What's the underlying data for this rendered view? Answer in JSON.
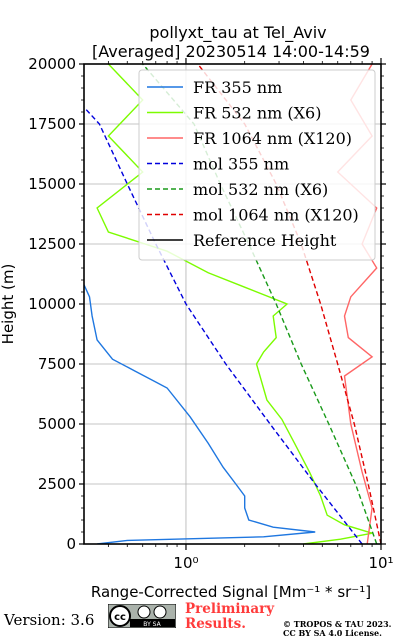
{
  "chart_data": {
    "type": "line",
    "title_line1": "pollyxt_tau at Tel_Aviv",
    "title_line2": "[Averaged] 20230514 14:00-14:59",
    "xlabel": "Range-Corrected Signal [Mm⁻¹ * sr⁻¹]",
    "ylabel": "Height (m)",
    "xscale": "log",
    "xlim": [
      0.3,
      10
    ],
    "ylim": [
      0,
      20000
    ],
    "yticks": [
      0,
      2500,
      5000,
      7500,
      10000,
      12500,
      15000,
      17500,
      20000
    ],
    "ytick_labels": [
      "0",
      "2500",
      "5000",
      "7500",
      "10000",
      "12500",
      "15000",
      "17500",
      "20000"
    ],
    "xticks": [
      1,
      10
    ],
    "xtick_labels": [
      "10⁰",
      "10¹"
    ],
    "grid": true,
    "legend_position": "top-right",
    "series": [
      {
        "name": "FR 355 nm",
        "color": "#1f77e0",
        "style": "solid",
        "points": [
          [
            0.35,
            0
          ],
          [
            0.5,
            150
          ],
          [
            2.5,
            300
          ],
          [
            4.6,
            500
          ],
          [
            2.8,
            700
          ],
          [
            2.1,
            1000
          ],
          [
            2.0,
            1500
          ],
          [
            2.0,
            2000
          ],
          [
            1.8,
            2500
          ],
          [
            1.55,
            3200
          ],
          [
            1.3,
            4200
          ],
          [
            1.05,
            5300
          ],
          [
            0.8,
            6500
          ],
          [
            0.55,
            7200
          ],
          [
            0.42,
            7700
          ],
          [
            0.35,
            8500
          ],
          [
            0.33,
            9500
          ],
          [
            0.32,
            10300
          ],
          [
            0.3,
            10800
          ]
        ]
      },
      {
        "name": "FR 532 nm (X6)",
        "color": "#7cfc00",
        "style": "solid",
        "points": [
          [
            4.0,
            0
          ],
          [
            6.2,
            200
          ],
          [
            9.0,
            450
          ],
          [
            6.5,
            800
          ],
          [
            5.3,
            1200
          ],
          [
            4.9,
            2000
          ],
          [
            4.3,
            3000
          ],
          [
            3.6,
            4200
          ],
          [
            3.1,
            5200
          ],
          [
            2.6,
            6000
          ],
          [
            2.3,
            7500
          ],
          [
            2.5,
            8000
          ],
          [
            2.9,
            8600
          ],
          [
            2.8,
            9500
          ],
          [
            3.3,
            10000
          ],
          [
            2.0,
            10700
          ],
          [
            1.3,
            11300
          ],
          [
            0.8,
            12200
          ],
          [
            0.4,
            13000
          ],
          [
            0.35,
            14000
          ],
          [
            0.6,
            15500
          ],
          [
            0.4,
            17000
          ],
          [
            0.6,
            18500
          ],
          [
            0.4,
            20000
          ]
        ]
      },
      {
        "name": "FR 1064 nm (X120)",
        "color": "#ff6666",
        "style": "solid",
        "points": [
          [
            8.5,
            0
          ],
          [
            9.0,
            1500
          ],
          [
            8.0,
            3000
          ],
          [
            7.0,
            5000
          ],
          [
            6.5,
            7000
          ],
          [
            9.0,
            7800
          ],
          [
            6.8,
            8600
          ],
          [
            6.5,
            9500
          ],
          [
            7.0,
            10300
          ],
          [
            9.5,
            11500
          ],
          [
            8.0,
            12500
          ],
          [
            9.5,
            14000
          ],
          [
            6.0,
            15500
          ],
          [
            9.0,
            17000
          ],
          [
            7.0,
            18500
          ],
          [
            9.0,
            20000
          ]
        ]
      },
      {
        "name": "mol 355 nm",
        "color": "#0000dd",
        "style": "dashed",
        "points": [
          [
            8.0,
            0
          ],
          [
            4.6,
            2500
          ],
          [
            2.7,
            5000
          ],
          [
            1.6,
            7500
          ],
          [
            1.0,
            10000
          ],
          [
            0.7,
            12500
          ],
          [
            0.5,
            15000
          ],
          [
            0.36,
            17500
          ],
          [
            0.3,
            18200
          ]
        ]
      },
      {
        "name": "mol 532 nm (X6)",
        "color": "#1a9a1a",
        "style": "dashed",
        "points": [
          [
            9.5,
            0
          ],
          [
            7.4,
            2500
          ],
          [
            5.4,
            5000
          ],
          [
            3.9,
            7500
          ],
          [
            2.9,
            10000
          ],
          [
            2.1,
            12500
          ],
          [
            1.5,
            15000
          ],
          [
            1.1,
            17500
          ],
          [
            0.6,
            20000
          ]
        ]
      },
      {
        "name": "mol 1064 nm (X120)",
        "color": "#e00000",
        "style": "dashed",
        "points": [
          [
            10,
            0
          ],
          [
            8.6,
            2500
          ],
          [
            7.3,
            5000
          ],
          [
            6.0,
            7500
          ],
          [
            4.9,
            10000
          ],
          [
            3.9,
            12500
          ],
          [
            2.9,
            15000
          ],
          [
            2.0,
            17500
          ],
          [
            1.15,
            20000
          ]
        ]
      },
      {
        "name": "Reference Height",
        "color": "#000000",
        "style": "solid",
        "points": []
      }
    ]
  },
  "footer": {
    "version": "Version: 3.6",
    "cc_text": "BY   SA",
    "preliminary_line1": "Preliminary",
    "preliminary_line2": "Results.",
    "copyright_line1": "© TROPOS & TAU 2023.",
    "copyright_line2": "CC BY SA 4.0 License."
  }
}
